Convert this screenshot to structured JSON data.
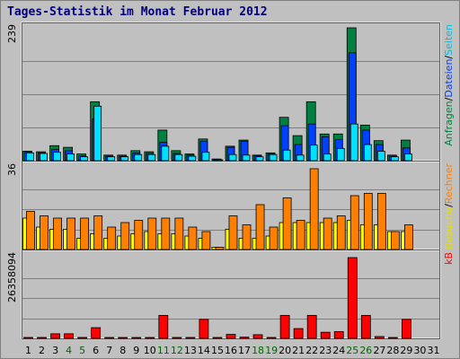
{
  "title": "Tages-Statistik im Monat Februar 2012",
  "colors": {
    "background": "#c0c0c0",
    "plot_background": "#c0c0c0",
    "title": "#000080",
    "weekday": "#000000",
    "weekend": "#006600",
    "anfragen": "#008040",
    "dateien": "#0040ff",
    "seiten": "#00e0ff",
    "besuche": "#ffff00",
    "rechner": "#ff8000",
    "kb": "#ff0000"
  },
  "panels": {
    "top": {
      "max_label": "239"
    },
    "middle": {
      "max_label": "36"
    },
    "bottom": {
      "max_label": "26358094"
    }
  },
  "legends": {
    "top": [
      {
        "text": "Anfragen",
        "color": "#008040"
      },
      {
        "text": "/",
        "color": "#000000"
      },
      {
        "text": "Dateien",
        "color": "#0040ff"
      },
      {
        "text": "/",
        "color": "#000000"
      },
      {
        "text": "Seiten",
        "color": "#00c0e0"
      }
    ],
    "middle": [
      {
        "text": "Besuche",
        "color": "#e0e000"
      },
      {
        "text": "/",
        "color": "#000000"
      },
      {
        "text": "Rechner",
        "color": "#ff8000"
      }
    ],
    "bottom": [
      {
        "text": "kB",
        "color": "#ff0000"
      }
    ]
  },
  "chart_data": {
    "type": "bar",
    "title": "Tages-Statistik im Monat Februar 2012",
    "categories": [
      "1",
      "2",
      "3",
      "4",
      "5",
      "6",
      "7",
      "8",
      "9",
      "10",
      "11",
      "12",
      "13",
      "14",
      "15",
      "16",
      "17",
      "18",
      "19",
      "20",
      "21",
      "22",
      "23",
      "24",
      "25",
      "26",
      "27",
      "28",
      "29",
      "30",
      "31"
    ],
    "weekend_days": [
      4,
      5,
      11,
      12,
      18,
      19,
      25,
      26
    ],
    "panels": [
      {
        "name": "top",
        "ylim": [
          0,
          239
        ],
        "series": [
          {
            "name": "Anfragen",
            "values": [
              17,
              16,
              27,
              24,
              12,
              106,
              10,
              10,
              18,
              16,
              55,
              18,
              12,
              39,
              3,
              26,
              37,
              10,
              14,
              78,
              45,
              106,
              48,
              48,
              239,
              64,
              36,
              10,
              37,
              0,
              0
            ]
          },
          {
            "name": "Dateien",
            "values": [
              16,
              14,
              20,
              18,
              9,
              75,
              8,
              8,
              14,
              13,
              33,
              13,
              10,
              35,
              2,
              24,
              35,
              9,
              12,
              63,
              29,
              66,
              43,
              38,
              194,
              55,
              29,
              8,
              23,
              0,
              0
            ]
          },
          {
            "name": "Seiten",
            "values": [
              14,
              13,
              15,
              12,
              7,
              98,
              7,
              7,
              11,
              11,
              26,
              11,
              8,
              15,
              1,
              11,
              10,
              7,
              11,
              19,
              10,
              28,
              12,
              22,
              66,
              29,
              17,
              7,
              12,
              0,
              0
            ]
          }
        ]
      },
      {
        "name": "middle",
        "ylim": [
          0,
          36
        ],
        "series": [
          {
            "name": "Besuche",
            "values": [
              14,
              10,
              9,
              9,
              5,
              7,
              5,
              6,
              7,
              8,
              7,
              7,
              6,
              5,
              1,
              9,
              5,
              5,
              6,
              12,
              12,
              12,
              12,
              12,
              13,
              11,
              11,
              8,
              8,
              0,
              0
            ]
          },
          {
            "name": "Rechner",
            "values": [
              17,
              15,
              14,
              14,
              14,
              15,
              10,
              12,
              13,
              14,
              14,
              14,
              10,
              8,
              1,
              15,
              11,
              20,
              10,
              23,
              13,
              36,
              14,
              15,
              24,
              25,
              25,
              8,
              11,
              0,
              0
            ]
          }
        ]
      },
      {
        "name": "bottom",
        "ylim": [
          0,
          26358094
        ],
        "series": [
          {
            "name": "kB",
            "values": [
              300000,
              300000,
              1500000,
              1500000,
              300000,
              3500000,
              200000,
              200000,
              200000,
              200000,
              7500000,
              300000,
              300000,
              6200000,
              200000,
              1300000,
              400000,
              1200000,
              300000,
              7500000,
              3200000,
              7500000,
              2000000,
              2200000,
              26358094,
              7500000,
              600000,
              200000,
              6200000,
              0,
              0
            ]
          }
        ]
      }
    ]
  }
}
